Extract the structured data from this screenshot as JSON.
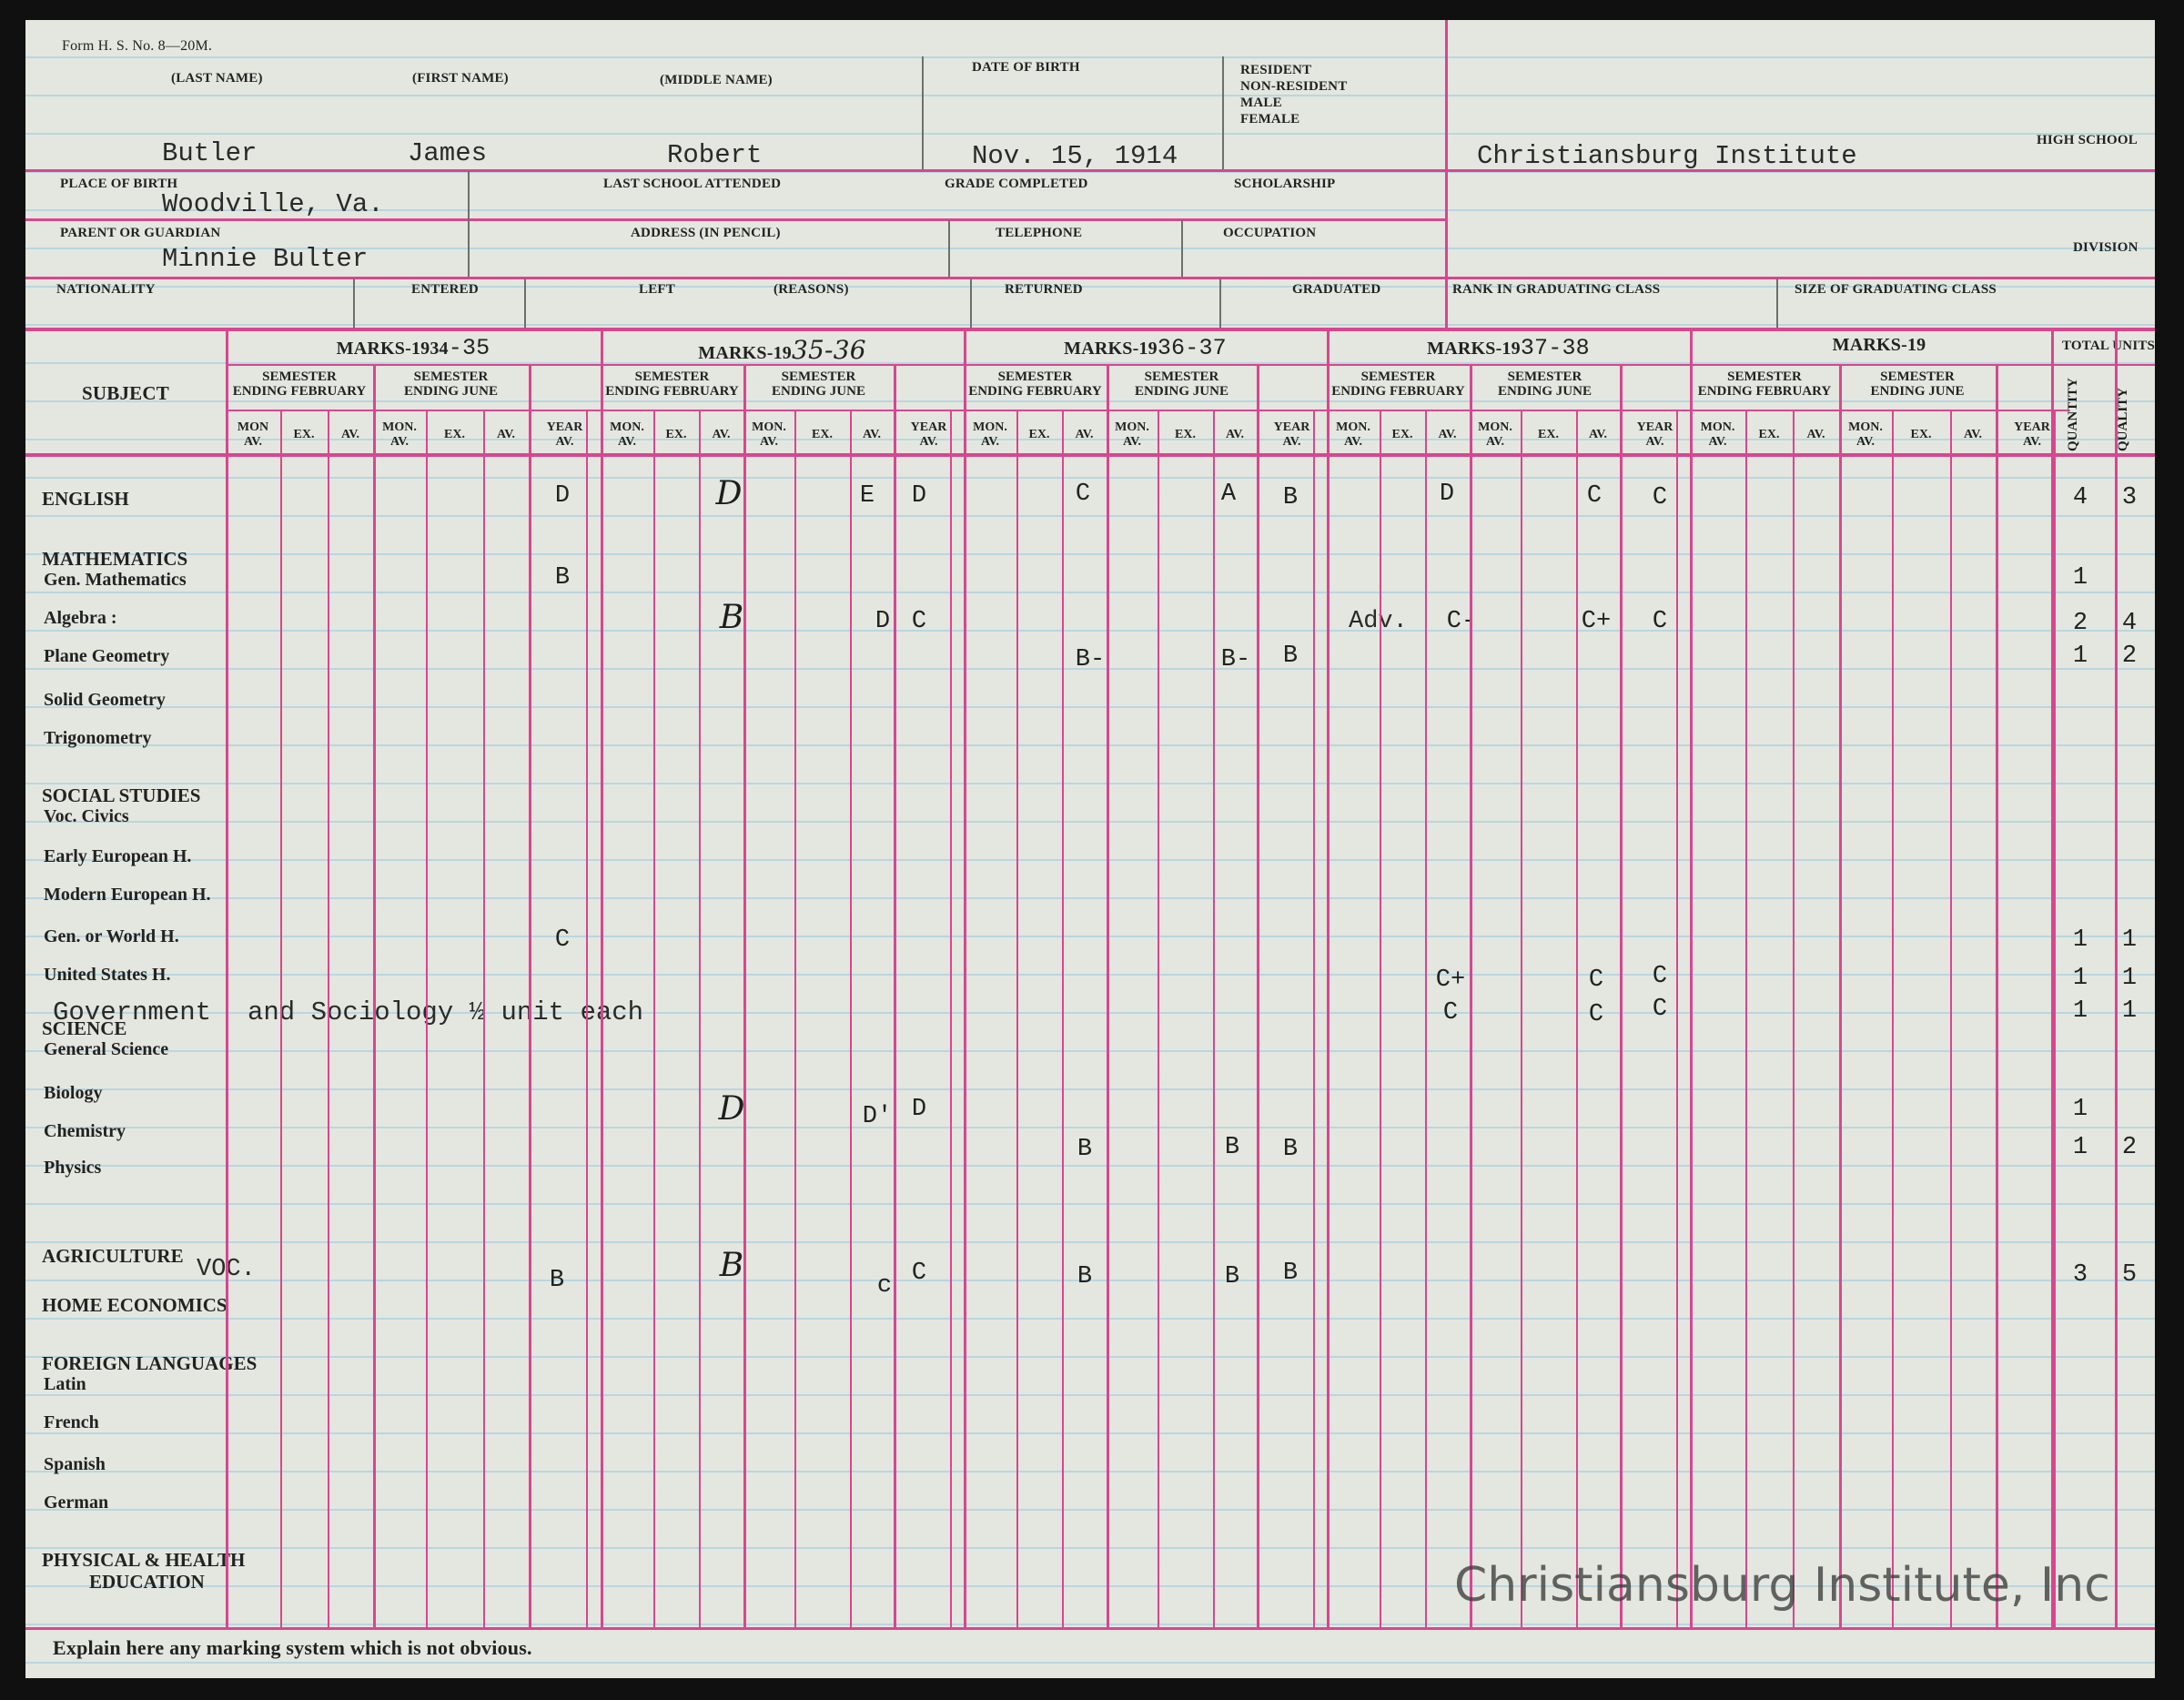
{
  "form": {
    "form_no": "Form H. S. No. 8—20M.",
    "labels": {
      "last_name": "(LAST NAME)",
      "first_name": "(FIRST NAME)",
      "middle_name": "(MIDDLE NAME)",
      "date_of_birth": "DATE OF BIRTH",
      "resident": "RESIDENT",
      "non_resident": "NON-RESIDENT",
      "male": "MALE",
      "female": "FEMALE",
      "high_school": "HIGH SCHOOL",
      "place_of_birth": "PLACE OF BIRTH",
      "last_school_attended": "LAST SCHOOL ATTENDED",
      "grade_completed": "GRADE COMPLETED",
      "scholarship": "SCHOLARSHIP",
      "parent_or_guardian": "PARENT OR GUARDIAN",
      "address": "ADDRESS (IN PENCIL)",
      "telephone": "TELEPHONE",
      "occupation": "OCCUPATION",
      "division": "DIVISION",
      "nationality": "NATIONALITY",
      "entered": "ENTERED",
      "left": "LEFT",
      "reasons": "(REASONS)",
      "returned": "RETURNED",
      "graduated": "GRADUATED",
      "rank": "RANK IN GRADUATING CLASS",
      "size": "SIZE OF GRADUATING CLASS"
    },
    "values": {
      "last_name": "Butler",
      "first_name": "James",
      "middle_name": "Robert",
      "date_of_birth": "Nov. 15, 1914",
      "high_school": "Christiansburg Institute",
      "place_of_birth": "Woodville, Va.",
      "parent_or_guardian": "Minnie Bulter"
    }
  },
  "grid": {
    "subject_header": "SUBJECT",
    "total_units": "TOTAL UNITS",
    "quantity": "QUANTITY",
    "quality": "QUALITY",
    "marks_prefix": "MARKS-19",
    "years": [
      "34-35",
      "35-36",
      "36-37",
      "37-38",
      ""
    ],
    "sem_feb": "SEMESTER\nENDING FEBRUARY",
    "sem_jun": "SEMESTER\nENDING JUNE",
    "mon_av": "MON.\nAV.",
    "mon_av_first": "MON\nAV.",
    "ex": "EX.",
    "av": "AV.",
    "year_av": "YEAR\nAV."
  },
  "subjects": [
    {
      "label": "ENGLISH",
      "section": true
    },
    {
      "label": "MATHEMATICS",
      "section": true
    },
    {
      "label": "Gen. Mathematics"
    },
    {
      "label": "Algebra :"
    },
    {
      "label": "Plane Geometry"
    },
    {
      "label": "Solid Geometry"
    },
    {
      "label": "Trigonometry"
    },
    {
      "label": "SOCIAL STUDIES",
      "section": true
    },
    {
      "label": "Voc. Civics"
    },
    {
      "label": "Early European H."
    },
    {
      "label": "Modern European H."
    },
    {
      "label": "Gen. or World H."
    },
    {
      "label": "United States H."
    },
    {
      "label": "SCIENCE",
      "section": true
    },
    {
      "label": "General Science"
    },
    {
      "label": "Biology"
    },
    {
      "label": "Chemistry"
    },
    {
      "label": "Physics"
    },
    {
      "label": "AGRICULTURE",
      "section": true
    },
    {
      "label": "HOME ECONOMICS",
      "section": true
    },
    {
      "label": "FOREIGN LANGUAGES",
      "section": true
    },
    {
      "label": "Latin"
    },
    {
      "label": "French"
    },
    {
      "label": "Spanish"
    },
    {
      "label": "German"
    },
    {
      "label": "PHYSICAL & HEALTH",
      "section": true
    },
    {
      "label": "EDUCATION",
      "section": true
    }
  ],
  "typed_notes": {
    "government": "Government",
    "gov_rest": "and Sociology  ½ unit each",
    "voc": "VOC.",
    "adv": "Adv."
  },
  "marks": {
    "english": [
      "D",
      "D",
      "E",
      "D",
      "C",
      "A",
      "B",
      "D",
      "C",
      "C",
      "4",
      "3"
    ],
    "gen_math": [
      "B",
      "1"
    ],
    "algebra": [
      "B",
      "D",
      "C",
      "C-",
      "C+",
      "C",
      "2",
      "4"
    ],
    "plane_geometry": [
      "B-",
      "B-",
      "B",
      "1",
      "2"
    ],
    "world_h": [
      "C",
      "1",
      "1"
    ],
    "us_h": [
      "C+",
      "C",
      "C",
      "1",
      "1"
    ],
    "government": [
      "C",
      "C",
      "C",
      "1",
      "1"
    ],
    "biology": [
      "D",
      "D'",
      "D",
      "1"
    ],
    "chemistry": [
      "B",
      "B",
      "B",
      "1",
      "2"
    ],
    "agriculture": [
      "B",
      "B",
      "c",
      "C",
      "B",
      "B",
      "B",
      "3",
      "5"
    ]
  },
  "footer": {
    "explain": "Explain here any marking system which is not obvious."
  },
  "watermark": "Christiansburg Institute, Inc"
}
